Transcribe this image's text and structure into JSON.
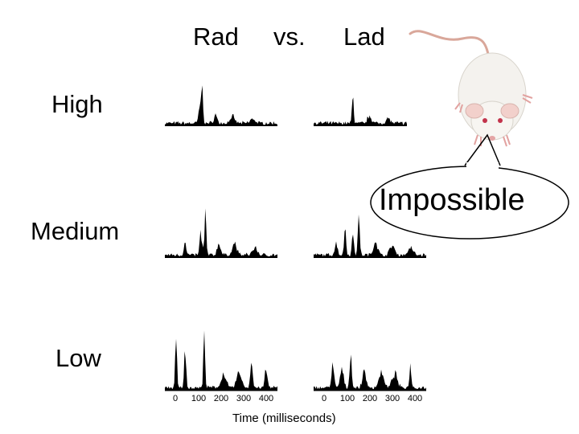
{
  "columns": [
    "Rad",
    "vs.",
    "Lad"
  ],
  "rows": [
    "High",
    "Medium",
    "Low"
  ],
  "callout": "Impossible",
  "x_axis": {
    "label": "Time (milliseconds)",
    "ticks": [
      "0",
      "100",
      "200",
      "300",
      "400"
    ]
  },
  "icons": {
    "mouse": "white-mouse-icon",
    "callout_bubble": "speech-bubble-icon"
  }
}
